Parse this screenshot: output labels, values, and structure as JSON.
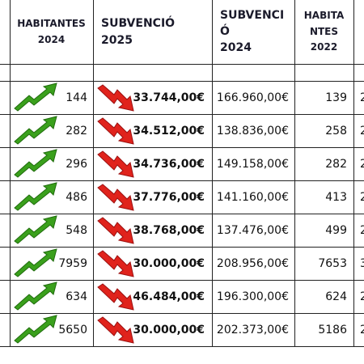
{
  "table": {
    "headers": [
      [
        "HABITANTES",
        "2024"
      ],
      [
        "SUBVENCIÓ",
        "2025"
      ],
      [
        "SUBVENCI",
        "Ó",
        "2024"
      ],
      [
        "HABITA",
        "NTES",
        "2022"
      ]
    ],
    "rows": [
      [
        144,
        "33.744,00€",
        "166.960,00€",
        139,
        "2"
      ],
      [
        282,
        "34.512,00€",
        "138.836,00€",
        258,
        "2"
      ],
      [
        296,
        "34.736,00€",
        "149.158,00€",
        282,
        "2"
      ],
      [
        486,
        "37.776,00€",
        "141.160,00€",
        413,
        "2"
      ],
      [
        548,
        "38.768,00€",
        "137.476,00€",
        499,
        "2"
      ],
      [
        7959,
        "30.000,00€",
        "208.956,00€",
        7653,
        "3"
      ],
      [
        634,
        "46.484,00€",
        "196.300,00€",
        624,
        "2"
      ],
      [
        5650,
        "30.000,00€",
        "202.373,00€",
        5186,
        "2"
      ]
    ]
  }
}
